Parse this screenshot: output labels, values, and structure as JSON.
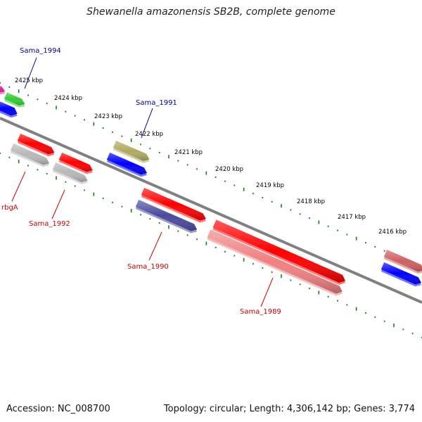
{
  "header": {
    "title": "Shewanella amazonensis SB2B, complete genome"
  },
  "footer": {
    "accession": "Accession: NC_008700",
    "summary": "Topology: circular; Length: 4,306,142 bp; Genes: 3,774"
  },
  "scale_labels": [
    "2425 kbp",
    "2424 kbp",
    "2423 kbp",
    "2422 kbp",
    "2421 kbp",
    "2420 kbp",
    "2419 kbp",
    "2418 kbp",
    "2417 kbp",
    "2416 kbp"
  ],
  "gene_labels": {
    "sama_1994": "Sama_1994",
    "sama_1991": "Sama_1991",
    "rbga": "rbgA",
    "sama_1992": "Sama_1992",
    "sama_1990": "Sama_1990",
    "sama_1989": "Sama_1989"
  },
  "colors": {
    "backbone": "#808080",
    "tick": "#1a7a1a",
    "cds_red": "#ff0000",
    "cds_blue": "#0000ff",
    "cds_navy": "#4a4aa0",
    "cds_olive": "#b0aa60",
    "cds_gray": "#b8b8b8",
    "cds_pink": "#f08080",
    "cds_green": "#33cc33",
    "cds_magenta": "#e0208c",
    "label_blue": "#00008b",
    "label_red": "#cc0000"
  }
}
